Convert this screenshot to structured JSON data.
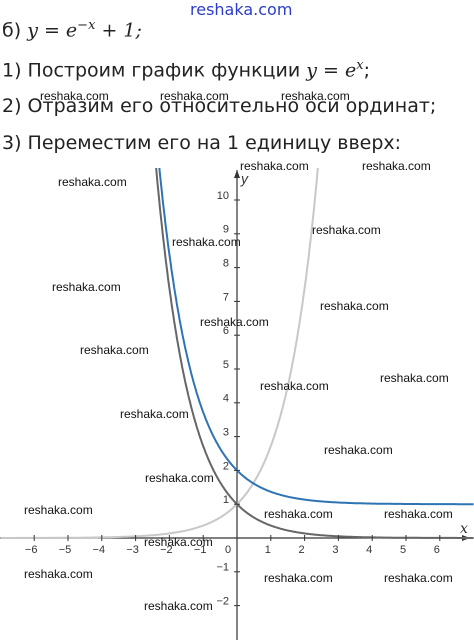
{
  "header": {
    "watermark": "reshaka.com"
  },
  "lines": [
    {
      "text": "б)",
      "math": "y = e",
      "sup": "−x",
      "after": "+ 1;"
    },
    {
      "text": "1) Построим график функции",
      "math": "y = e",
      "sup": "x",
      "after": ";"
    },
    {
      "text": "2) Отразим его относительно оси ординат;"
    },
    {
      "text": "3) Переместим его на 1 единицу вверх:"
    }
  ],
  "graph": {
    "x_label": "x",
    "y_label": "y",
    "x_ticks": [
      "−6",
      "−5",
      "−4",
      "−3",
      "−2",
      "−1",
      "0",
      "1",
      "2",
      "3",
      "4",
      "5",
      "6"
    ],
    "y_ticks": [
      "−2",
      "−1",
      "1",
      "2",
      "3",
      "4",
      "5",
      "6",
      "7",
      "8",
      "9",
      "10"
    ]
  },
  "watermarks": [
    "reshaka.com",
    "reshaka.com",
    "reshaka.com",
    "reshaka.com",
    "reshaka.com",
    "reshaka.com",
    "reshaka.com",
    "reshaka.com",
    "reshaka.com",
    "reshaka.com",
    "reshaka.com",
    "reshaka.com",
    "reshaka.com",
    "reshaka.com",
    "reshaka.com",
    "reshaka.com",
    "reshaka.com",
    "reshaka.com",
    "reshaka.com",
    "reshaka.com",
    "reshaka.com",
    "reshaka.com",
    "reshaka.com",
    "reshaka.com",
    "reshaka.com"
  ]
}
